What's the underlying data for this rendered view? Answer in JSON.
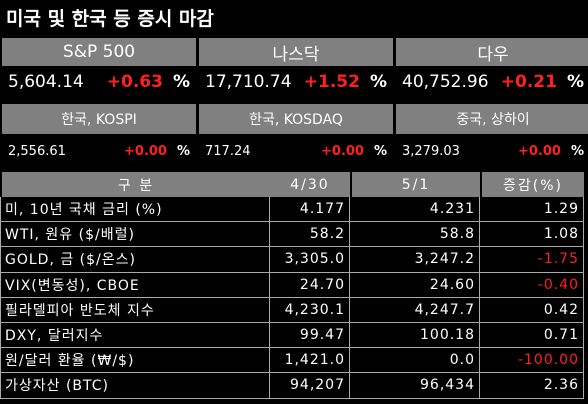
{
  "header": {
    "title": "미국 및 한국 등 증시 마감"
  },
  "indices_top": [
    {
      "name": "S&P 500",
      "value": "5,604.14",
      "change": "+0.63",
      "unit": "%"
    },
    {
      "name": "나스닥",
      "value": "17,710.74",
      "change": "+1.52",
      "unit": "%"
    },
    {
      "name": "다우",
      "value": "40,752.96",
      "change": "+0.21",
      "unit": "%"
    }
  ],
  "indices_bottom": [
    {
      "name": "한국, KOSPI",
      "value": "2,556.61",
      "change": "+0.00",
      "unit": "%"
    },
    {
      "name": "한국, KOSDAQ",
      "value": "717.24",
      "change": "+0.00",
      "unit": "%"
    },
    {
      "name": "중국, 상하이",
      "value": "3,279.03",
      "change": "+0.00",
      "unit": "%"
    }
  ],
  "table": {
    "columns": [
      "구 분",
      "4/30",
      "5/1",
      "증감(%)"
    ],
    "rows": [
      [
        "미, 10년 국채 금리 (%)",
        "4.177",
        "4.231",
        "1.29"
      ],
      [
        "WTI, 원유 ($/배럴)",
        "58.2",
        "58.8",
        "1.08"
      ],
      [
        "GOLD, 금 ($/온스)",
        "3,305.0",
        "3,247.2",
        "-1.75"
      ],
      [
        "VIX(변동성), CBOE",
        "24.70",
        "24.60",
        "-0.40"
      ],
      [
        "필라델피아 반도체 지수",
        "4,230.1",
        "4,247.7",
        "0.42"
      ],
      [
        "DXY, 달러지수",
        "99.47",
        "100.18",
        "0.71"
      ],
      [
        "원/달러 환율 (₩/$)",
        "1,421.0",
        "0.0",
        "-100.00"
      ],
      [
        "가상자산 (BTC)",
        "94,207",
        "96,434",
        "2.36"
      ]
    ]
  }
}
